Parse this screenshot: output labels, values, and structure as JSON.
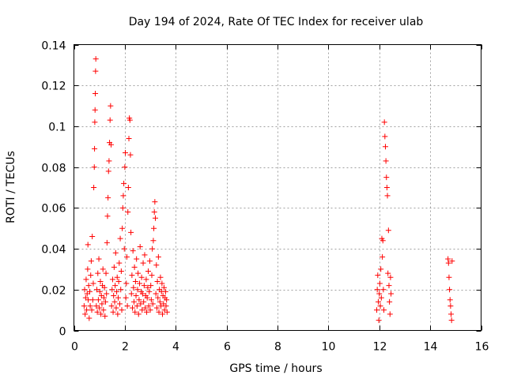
{
  "chart_data": {
    "type": "scatter",
    "title": "Day 194 of 2024, Rate Of TEC Index for receiver ulab",
    "xlabel": "GPS time / hours",
    "ylabel": "ROTI / TECUs",
    "xlim": [
      0,
      16
    ],
    "ylim": [
      0,
      0.14
    ],
    "xticks": [
      0,
      2,
      4,
      6,
      8,
      10,
      12,
      14,
      16
    ],
    "xtick_labels": [
      "0",
      "2",
      "4",
      "6",
      "8",
      "10",
      "12",
      "14",
      "16"
    ],
    "yticks": [
      0,
      0.02,
      0.04,
      0.06,
      0.08,
      0.1,
      0.12,
      0.14
    ],
    "ytick_labels": [
      "0",
      "0.02",
      "0.04",
      "0.06",
      "0.08",
      "0.1",
      "0.12",
      "0.14"
    ],
    "grid": true,
    "marker": "+",
    "marker_color": "#ff0000",
    "series": [
      {
        "name": "ROTI",
        "points": [
          [
            0.4,
            0.012
          ],
          [
            0.42,
            0.02
          ],
          [
            0.44,
            0.008
          ],
          [
            0.46,
            0.016
          ],
          [
            0.48,
            0.025
          ],
          [
            0.5,
            0.01
          ],
          [
            0.52,
            0.018
          ],
          [
            0.54,
            0.03
          ],
          [
            0.55,
            0.042
          ],
          [
            0.56,
            0.015
          ],
          [
            0.58,
            0.022
          ],
          [
            0.6,
            0.006
          ],
          [
            0.62,
            0.019
          ],
          [
            0.64,
            0.012
          ],
          [
            0.66,
            0.027
          ],
          [
            0.68,
            0.034
          ],
          [
            0.7,
            0.01
          ],
          [
            0.72,
            0.046
          ],
          [
            0.74,
            0.015
          ],
          [
            0.76,
            0.023
          ],
          [
            0.78,
            0.07
          ],
          [
            0.8,
            0.08
          ],
          [
            0.81,
            0.089
          ],
          [
            0.82,
            0.102
          ],
          [
            0.83,
            0.108
          ],
          [
            0.84,
            0.116
          ],
          [
            0.85,
            0.127
          ],
          [
            0.86,
            0.133
          ],
          [
            0.88,
            0.012
          ],
          [
            0.9,
            0.02
          ],
          [
            0.92,
            0.009
          ],
          [
            0.94,
            0.028
          ],
          [
            0.96,
            0.015
          ],
          [
            0.98,
            0.035
          ],
          [
            1.0,
            0.011
          ],
          [
            1.02,
            0.019
          ],
          [
            1.04,
            0.024
          ],
          [
            1.06,
            0.008
          ],
          [
            1.08,
            0.017
          ],
          [
            1.1,
            0.013
          ],
          [
            1.12,
            0.022
          ],
          [
            1.14,
            0.03
          ],
          [
            1.16,
            0.01
          ],
          [
            1.18,
            0.016
          ],
          [
            1.2,
            0.021
          ],
          [
            1.22,
            0.007
          ],
          [
            1.24,
            0.014
          ],
          [
            1.26,
            0.028
          ],
          [
            1.28,
            0.018
          ],
          [
            1.3,
            0.043
          ],
          [
            1.32,
            0.056
          ],
          [
            1.34,
            0.065
          ],
          [
            1.36,
            0.078
          ],
          [
            1.38,
            0.083
          ],
          [
            1.4,
            0.092
          ],
          [
            1.42,
            0.103
          ],
          [
            1.44,
            0.11
          ],
          [
            1.46,
            0.091
          ],
          [
            1.48,
            0.012
          ],
          [
            1.5,
            0.02
          ],
          [
            1.52,
            0.025
          ],
          [
            1.54,
            0.009
          ],
          [
            1.56,
            0.017
          ],
          [
            1.58,
            0.031
          ],
          [
            1.6,
            0.014
          ],
          [
            1.62,
            0.022
          ],
          [
            1.64,
            0.038
          ],
          [
            1.66,
            0.011
          ],
          [
            1.68,
            0.019
          ],
          [
            1.7,
            0.026
          ],
          [
            1.72,
            0.008
          ],
          [
            1.74,
            0.016
          ],
          [
            1.76,
            0.024
          ],
          [
            1.78,
            0.033
          ],
          [
            1.8,
            0.013
          ],
          [
            1.82,
            0.045
          ],
          [
            1.84,
            0.02
          ],
          [
            1.86,
            0.029
          ],
          [
            1.88,
            0.01
          ],
          [
            1.9,
            0.05
          ],
          [
            1.92,
            0.06
          ],
          [
            1.94,
            0.066
          ],
          [
            1.96,
            0.072
          ],
          [
            1.98,
            0.04
          ],
          [
            2.0,
            0.08
          ],
          [
            2.02,
            0.087
          ],
          [
            2.04,
            0.016
          ],
          [
            2.06,
            0.023
          ],
          [
            2.08,
            0.036
          ],
          [
            2.1,
            0.012
          ],
          [
            2.12,
            0.058
          ],
          [
            2.14,
            0.07
          ],
          [
            2.16,
            0.094
          ],
          [
            2.18,
            0.104
          ],
          [
            2.2,
            0.103
          ],
          [
            2.22,
            0.086
          ],
          [
            2.24,
            0.048
          ],
          [
            2.26,
            0.018
          ],
          [
            2.28,
            0.027
          ],
          [
            2.3,
            0.011
          ],
          [
            2.32,
            0.039
          ],
          [
            2.34,
            0.021
          ],
          [
            2.36,
            0.014
          ],
          [
            2.38,
            0.031
          ],
          [
            2.4,
            0.009
          ],
          [
            2.42,
            0.024
          ],
          [
            2.44,
            0.017
          ],
          [
            2.46,
            0.035
          ],
          [
            2.48,
            0.012
          ],
          [
            2.5,
            0.02
          ],
          [
            2.52,
            0.028
          ],
          [
            2.54,
            0.008
          ],
          [
            2.56,
            0.015
          ],
          [
            2.58,
            0.023
          ],
          [
            2.6,
            0.041
          ],
          [
            2.62,
            0.013
          ],
          [
            2.64,
            0.019
          ],
          [
            2.66,
            0.026
          ],
          [
            2.68,
            0.01
          ],
          [
            2.7,
            0.018
          ],
          [
            2.72,
            0.033
          ],
          [
            2.74,
            0.014
          ],
          [
            2.76,
            0.022
          ],
          [
            2.78,
            0.037
          ],
          [
            2.8,
            0.011
          ],
          [
            2.82,
            0.017
          ],
          [
            2.84,
            0.025
          ],
          [
            2.86,
            0.009
          ],
          [
            2.88,
            0.016
          ],
          [
            2.9,
            0.021
          ],
          [
            2.92,
            0.029
          ],
          [
            2.94,
            0.012
          ],
          [
            2.96,
            0.019
          ],
          [
            2.98,
            0.034
          ],
          [
            3.0,
            0.01
          ],
          [
            3.02,
            0.022
          ],
          [
            3.04,
            0.015
          ],
          [
            3.06,
            0.027
          ],
          [
            3.08,
            0.04
          ],
          [
            3.1,
            0.013
          ],
          [
            3.12,
            0.044
          ],
          [
            3.14,
            0.05
          ],
          [
            3.16,
            0.058
          ],
          [
            3.18,
            0.063
          ],
          [
            3.2,
            0.055
          ],
          [
            3.22,
            0.018
          ],
          [
            3.24,
            0.032
          ],
          [
            3.26,
            0.011
          ],
          [
            3.28,
            0.024
          ],
          [
            3.3,
            0.016
          ],
          [
            3.32,
            0.036
          ],
          [
            3.34,
            0.009
          ],
          [
            3.36,
            0.02
          ],
          [
            3.38,
            0.014
          ],
          [
            3.4,
            0.026
          ],
          [
            3.42,
            0.012
          ],
          [
            3.44,
            0.019
          ],
          [
            3.46,
            0.023
          ],
          [
            3.48,
            0.008
          ],
          [
            3.5,
            0.017
          ],
          [
            3.52,
            0.013
          ],
          [
            3.54,
            0.021
          ],
          [
            3.56,
            0.01
          ],
          [
            3.58,
            0.016
          ],
          [
            3.6,
            0.019
          ],
          [
            3.62,
            0.012
          ],
          [
            3.64,
            0.015
          ],
          [
            3.66,
            0.009
          ],
          [
            11.9,
            0.01
          ],
          [
            11.92,
            0.02
          ],
          [
            11.94,
            0.027
          ],
          [
            11.96,
            0.014
          ],
          [
            11.98,
            0.005
          ],
          [
            12.0,
            0.018
          ],
          [
            12.02,
            0.023
          ],
          [
            12.04,
            0.012
          ],
          [
            12.06,
            0.03
          ],
          [
            12.08,
            0.016
          ],
          [
            12.1,
            0.045
          ],
          [
            12.12,
            0.036
          ],
          [
            12.14,
            0.044
          ],
          [
            12.16,
            0.02
          ],
          [
            12.18,
            0.01
          ],
          [
            12.2,
            0.102
          ],
          [
            12.22,
            0.095
          ],
          [
            12.24,
            0.09
          ],
          [
            12.26,
            0.083
          ],
          [
            12.28,
            0.075
          ],
          [
            12.3,
            0.07
          ],
          [
            12.32,
            0.066
          ],
          [
            12.34,
            0.028
          ],
          [
            12.36,
            0.049
          ],
          [
            12.38,
            0.022
          ],
          [
            12.4,
            0.014
          ],
          [
            12.42,
            0.008
          ],
          [
            12.44,
            0.026
          ],
          [
            12.46,
            0.018
          ],
          [
            14.7,
            0.035
          ],
          [
            14.72,
            0.033
          ],
          [
            14.74,
            0.026
          ],
          [
            14.76,
            0.02
          ],
          [
            14.78,
            0.015
          ],
          [
            14.8,
            0.012
          ],
          [
            14.82,
            0.008
          ],
          [
            14.84,
            0.005
          ],
          [
            14.86,
            0.034
          ]
        ]
      }
    ]
  }
}
